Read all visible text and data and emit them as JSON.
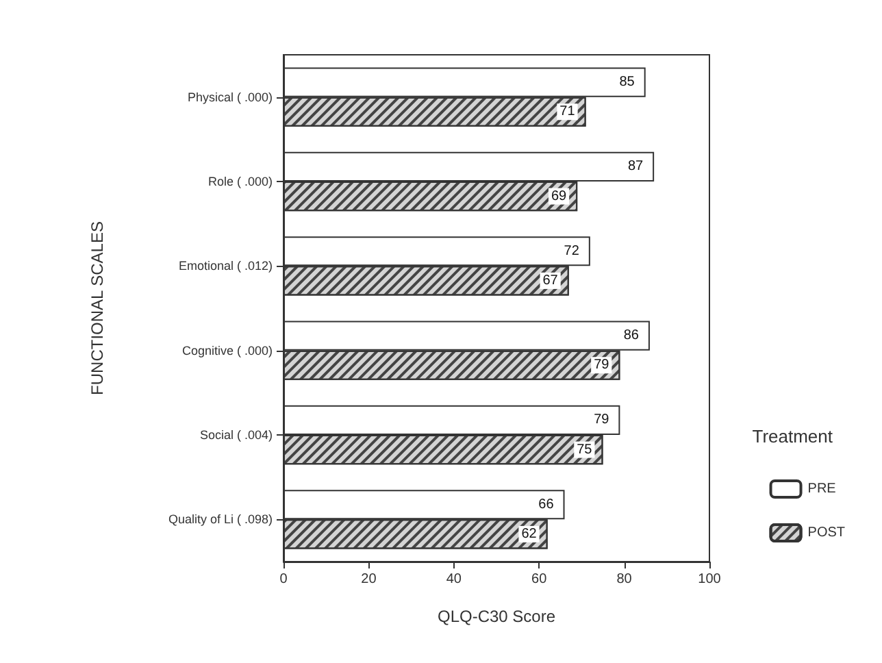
{
  "chart_data": {
    "type": "bar",
    "orientation": "horizontal",
    "xlabel": "QLQ-C30 Score",
    "ylabel": "FUNCTIONAL SCALES",
    "legend_title": "Treatment",
    "categories": [
      "Physical ( .000)",
      "Role ( .000)",
      "Emotional ( .012)",
      "Cognitive ( .000)",
      "Social ( .004)",
      "Quality of Li ( .098)"
    ],
    "series": [
      {
        "name": "PRE",
        "color": "#ffffff",
        "values": [
          85,
          87,
          72,
          86,
          79,
          66
        ]
      },
      {
        "name": "POST",
        "color": "#d4d4d4",
        "values": [
          71,
          69,
          67,
          79,
          75,
          62
        ]
      }
    ],
    "xlim": [
      0,
      100
    ],
    "xticks": [
      0,
      20,
      40,
      60,
      80,
      100
    ],
    "data_labels": true,
    "grid": false,
    "legend": "right"
  }
}
